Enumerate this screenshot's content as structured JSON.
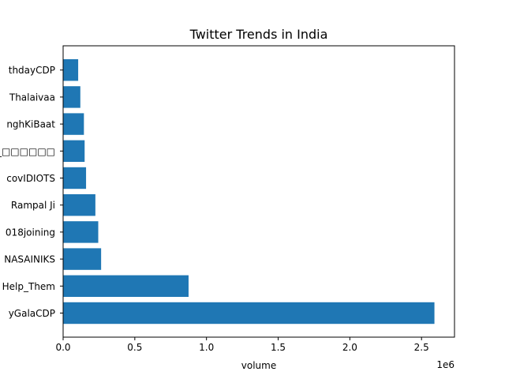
{
  "chart_data": {
    "type": "bar",
    "orientation": "horizontal",
    "title": "Twitter Trends in India",
    "xlabel": "volume",
    "ylabel": "",
    "x_offset_text": "1e6",
    "xlim": [
      0,
      2730000
    ],
    "xticks": [
      0,
      500000,
      1000000,
      1500000,
      2000000,
      2500000
    ],
    "xtick_labels": [
      "0.0",
      "0.5",
      "1.0",
      "1.5",
      "2.0",
      "2.5"
    ],
    "categories": [
      "yGalaCDP",
      "Help_Them",
      "NASAINIKS",
      "018joining",
      "Rampal Ji",
      "covIDIOTS",
      "OC_□□□□□□",
      "nghKiBaat",
      "Thalaivaa",
      "thdayCDP"
    ],
    "values": [
      2590000,
      875000,
      265000,
      245000,
      225000,
      160000,
      150000,
      145000,
      120000,
      105000
    ],
    "bar_color": "#1f77b4",
    "grid": false
  }
}
